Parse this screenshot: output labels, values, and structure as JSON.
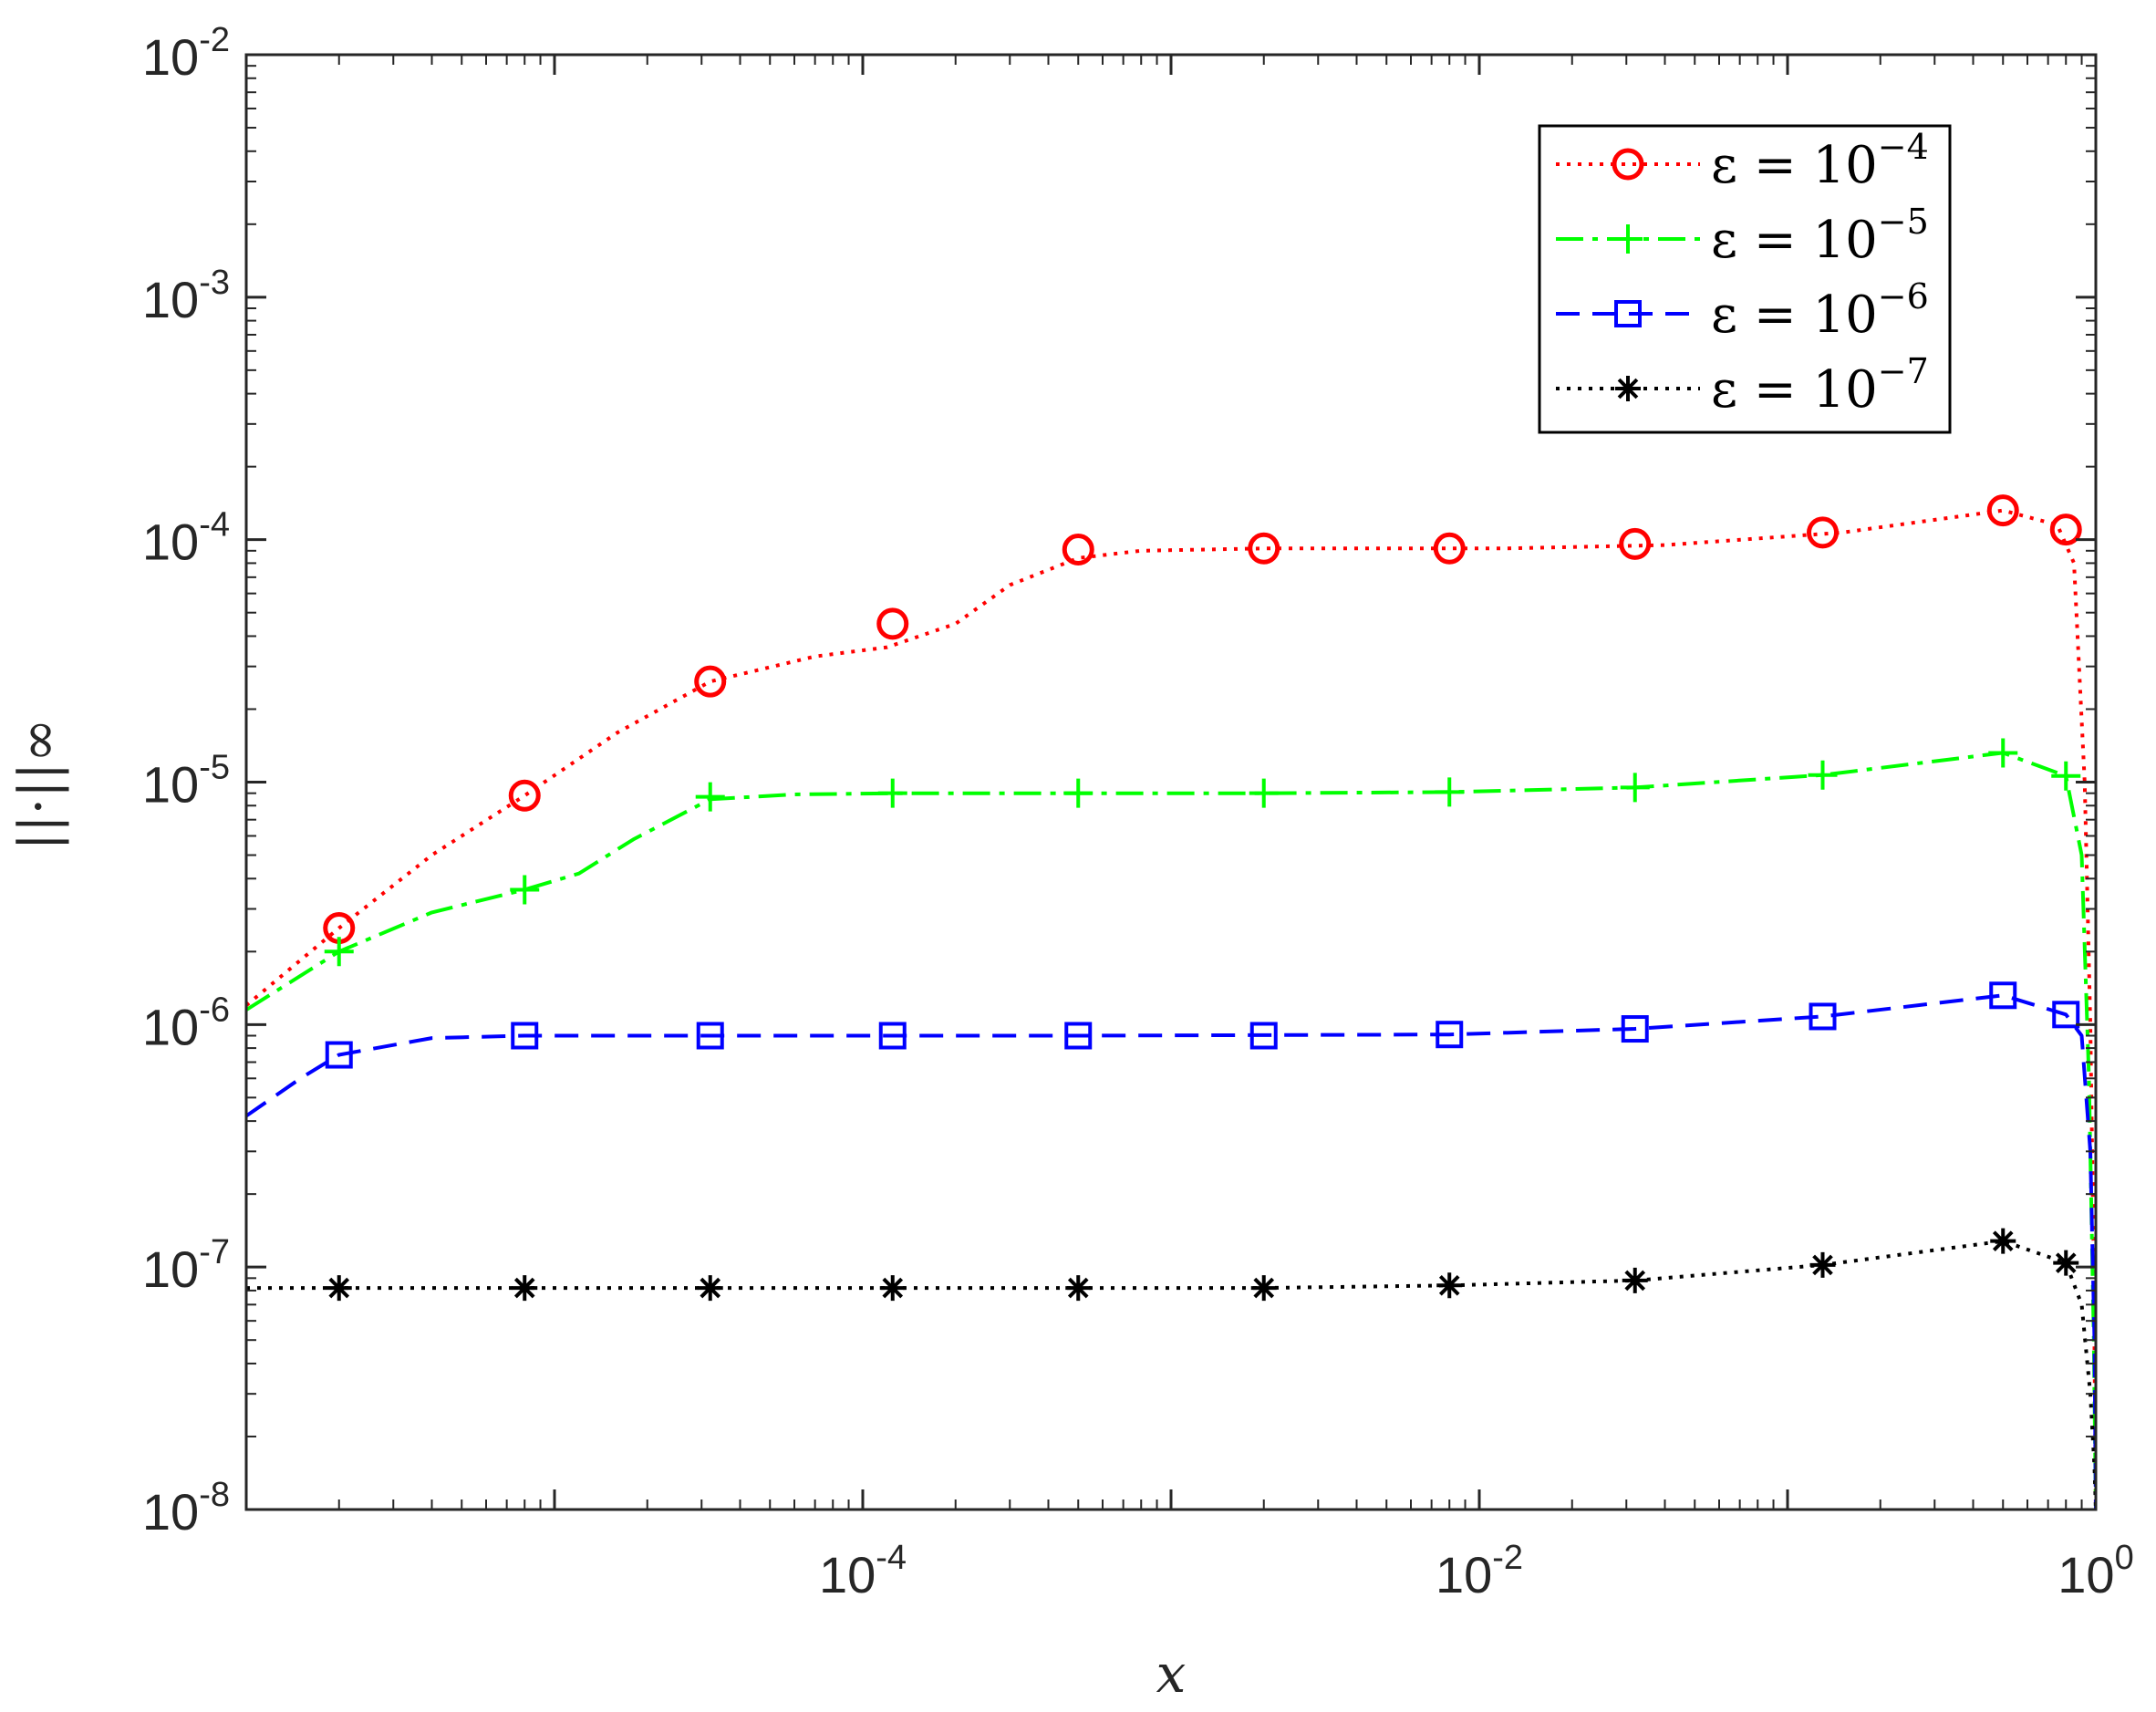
{
  "chart_data": {
    "type": "line",
    "xscale": "log",
    "yscale": "log",
    "xlim": [
      1e-06,
      1
    ],
    "ylim": [
      1e-08,
      0.01
    ],
    "xlabel": "x",
    "ylabel": "||·||∞",
    "grid": false,
    "legend_position": "top-right",
    "x_ticks": [
      {
        "value": 0.0001,
        "base": "10",
        "exp": "-4"
      },
      {
        "value": 0.01,
        "base": "10",
        "exp": "-2"
      },
      {
        "value": 1,
        "base": "10",
        "exp": "0"
      }
    ],
    "y_ticks": [
      {
        "value": 1e-08,
        "base": "10",
        "exp": "-8"
      },
      {
        "value": 1e-07,
        "base": "10",
        "exp": "-7"
      },
      {
        "value": 1e-06,
        "base": "10",
        "exp": "-6"
      },
      {
        "value": 1e-05,
        "base": "10",
        "exp": "-5"
      },
      {
        "value": 0.0001,
        "base": "10",
        "exp": "-4"
      },
      {
        "value": 0.001,
        "base": "10",
        "exp": "-3"
      },
      {
        "value": 0.01,
        "base": "10",
        "exp": "-2"
      }
    ],
    "series": [
      {
        "name": "ε = 10",
        "name_exp": "−4",
        "color": "#ff0000",
        "dash": "dotted",
        "marker": "circle",
        "curve": [
          [
            1e-06,
            1.2e-06
          ],
          [
            2e-06,
            2.5e-06
          ],
          [
            4e-06,
            5e-06
          ],
          [
            8e-06,
            8.8e-06
          ],
          [
            1.6e-05,
            1.6e-05
          ],
          [
            3.2e-05,
            2.6e-05
          ],
          [
            7e-05,
            3.3e-05
          ],
          [
            0.00012,
            3.6e-05
          ],
          [
            0.0002,
            4.5e-05
          ],
          [
            0.0003,
            6.5e-05
          ],
          [
            0.0005,
            8.4e-05
          ],
          [
            0.0008,
            9e-05
          ],
          [
            0.002,
            9.2e-05
          ],
          [
            0.005,
            9.2e-05
          ],
          [
            0.012,
            9.2e-05
          ],
          [
            0.04,
            9.5e-05
          ],
          [
            0.15,
            0.000107
          ],
          [
            0.5,
            0.000132
          ],
          [
            0.75,
            0.000115
          ],
          [
            0.85,
            8e-05
          ],
          [
            0.92,
            1e-05
          ],
          [
            0.96,
            1e-06
          ],
          [
            0.985,
            1e-07
          ],
          [
            1.0,
            1e-08
          ]
        ],
        "markers": [
          [
            2e-06,
            2.5e-06
          ],
          [
            8e-06,
            8.8e-06
          ],
          [
            3.2e-05,
            2.6e-05
          ],
          [
            0.000125,
            4.5e-05
          ],
          [
            0.0005,
            9.1e-05
          ],
          [
            0.002,
            9.2e-05
          ],
          [
            0.008,
            9.2e-05
          ],
          [
            0.032,
            9.6e-05
          ],
          [
            0.13,
            0.000107
          ],
          [
            0.5,
            0.000132
          ],
          [
            0.8,
            0.00011
          ]
        ]
      },
      {
        "name": "ε = 10",
        "name_exp": "−5",
        "color": "#00ff00",
        "dash": "dashdot",
        "marker": "plus",
        "curve": [
          [
            1e-06,
            1.15e-06
          ],
          [
            2e-06,
            2e-06
          ],
          [
            4e-06,
            2.9e-06
          ],
          [
            8e-06,
            3.6e-06
          ],
          [
            1.2e-05,
            4.2e-06
          ],
          [
            1.8e-05,
            5.8e-06
          ],
          [
            3.2e-05,
            8.5e-06
          ],
          [
            6e-05,
            8.9e-06
          ],
          [
            0.00013,
            9e-06
          ],
          [
            0.0005,
            9e-06
          ],
          [
            0.002,
            9e-06
          ],
          [
            0.008,
            9.1e-06
          ],
          [
            0.032,
            9.5e-06
          ],
          [
            0.13,
            1.07e-05
          ],
          [
            0.5,
            1.32e-05
          ],
          [
            0.8,
            1.06e-05
          ],
          [
            0.9,
            5e-06
          ],
          [
            0.95,
            6e-07
          ],
          [
            0.985,
            5e-08
          ],
          [
            1.0,
            1e-08
          ]
        ],
        "markers": [
          [
            2e-06,
            2e-06
          ],
          [
            8e-06,
            3.6e-06
          ],
          [
            3.2e-05,
            8.7e-06
          ],
          [
            0.000125,
            9e-06
          ],
          [
            0.0005,
            9e-06
          ],
          [
            0.002,
            9e-06
          ],
          [
            0.008,
            9.1e-06
          ],
          [
            0.032,
            9.5e-06
          ],
          [
            0.13,
            1.07e-05
          ],
          [
            0.5,
            1.32e-05
          ],
          [
            0.8,
            1.06e-05
          ]
        ]
      },
      {
        "name": "ε = 10",
        "name_exp": "−6",
        "color": "#0000ff",
        "dash": "dashed",
        "marker": "square",
        "curve": [
          [
            1e-06,
            4.2e-07
          ],
          [
            1.5e-06,
            6e-07
          ],
          [
            2e-06,
            7.5e-07
          ],
          [
            4e-06,
            8.8e-07
          ],
          [
            8e-06,
            9e-07
          ],
          [
            0.0005,
            9e-07
          ],
          [
            0.008,
            9.1e-07
          ],
          [
            0.032,
            9.6e-07
          ],
          [
            0.13,
            1.08e-06
          ],
          [
            0.5,
            1.32e-06
          ],
          [
            0.8,
            1.1e-06
          ],
          [
            0.9,
            9e-07
          ],
          [
            0.96,
            3e-07
          ],
          [
            0.99,
            5e-08
          ],
          [
            1.0,
            1e-08
          ]
        ],
        "markers": [
          [
            2e-06,
            7.5e-07
          ],
          [
            8e-06,
            9e-07
          ],
          [
            3.2e-05,
            9e-07
          ],
          [
            0.000125,
            9e-07
          ],
          [
            0.0005,
            9e-07
          ],
          [
            0.002,
            9e-07
          ],
          [
            0.008,
            9.1e-07
          ],
          [
            0.032,
            9.6e-07
          ],
          [
            0.13,
            1.08e-06
          ],
          [
            0.5,
            1.32e-06
          ],
          [
            0.8,
            1.1e-06
          ]
        ]
      },
      {
        "name": "ε = 10",
        "name_exp": "−7",
        "color": "#000000",
        "dash": "dotted",
        "marker": "asterisk",
        "curve": [
          [
            1e-06,
            8.2e-08
          ],
          [
            0.0005,
            8.2e-08
          ],
          [
            0.002,
            8.2e-08
          ],
          [
            0.008,
            8.4e-08
          ],
          [
            0.032,
            8.8e-08
          ],
          [
            0.13,
            1.02e-07
          ],
          [
            0.5,
            1.28e-07
          ],
          [
            0.8,
            1.04e-07
          ],
          [
            0.9,
            7e-08
          ],
          [
            0.96,
            3e-08
          ],
          [
            0.99,
            1.5e-08
          ],
          [
            1.0,
            1e-08
          ]
        ],
        "markers": [
          [
            2e-06,
            8.2e-08
          ],
          [
            8e-06,
            8.2e-08
          ],
          [
            3.2e-05,
            8.2e-08
          ],
          [
            0.000125,
            8.2e-08
          ],
          [
            0.0005,
            8.2e-08
          ],
          [
            0.002,
            8.2e-08
          ],
          [
            0.008,
            8.4e-08
          ],
          [
            0.032,
            8.8e-08
          ],
          [
            0.13,
            1.02e-07
          ],
          [
            0.5,
            1.28e-07
          ],
          [
            0.8,
            1.04e-07
          ]
        ]
      }
    ]
  }
}
